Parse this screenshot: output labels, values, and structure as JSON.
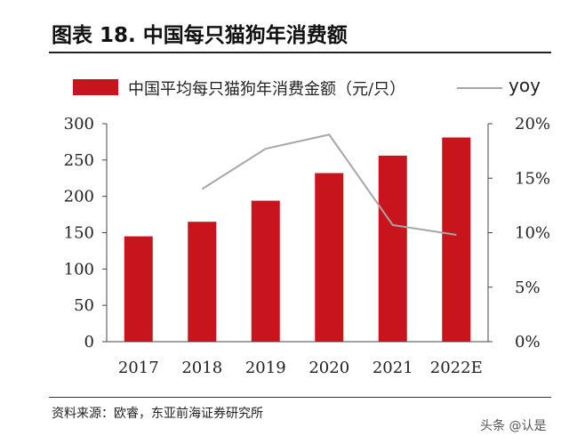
{
  "header": {
    "title": "图表 18. 中国每只猫狗年消费额"
  },
  "legend": {
    "bar_label": "中国平均每只猫狗年消费金额（元/只）",
    "line_label": "yoy"
  },
  "chart_data": {
    "type": "bar",
    "categories": [
      "2017",
      "2018",
      "2019",
      "2020",
      "2021",
      "2022E"
    ],
    "series": [
      {
        "name": "中国平均每只猫狗年消费金额（元/只）",
        "type": "bar",
        "axis": "left",
        "values": [
          145,
          165,
          194,
          232,
          256,
          281
        ]
      },
      {
        "name": "yoy",
        "type": "line",
        "axis": "right",
        "values": [
          null,
          14.0,
          17.7,
          19.0,
          10.7,
          9.8
        ]
      }
    ],
    "y_left": {
      "ylim": [
        0,
        300
      ],
      "ticks": [
        "0",
        "50",
        "100",
        "150",
        "200",
        "250",
        "300"
      ]
    },
    "y_right": {
      "ylim": [
        0,
        20
      ],
      "ticks": [
        "0%",
        "5%",
        "10%",
        "15%",
        "20%"
      ]
    },
    "bar_color": "#c8141c",
    "line_color": "#a6a6a6",
    "grid": false,
    "legend_position": "top"
  },
  "footer": {
    "source": "资料来源：欧睿，东亚前海证券研究所",
    "watermark": "头条 @认是"
  }
}
